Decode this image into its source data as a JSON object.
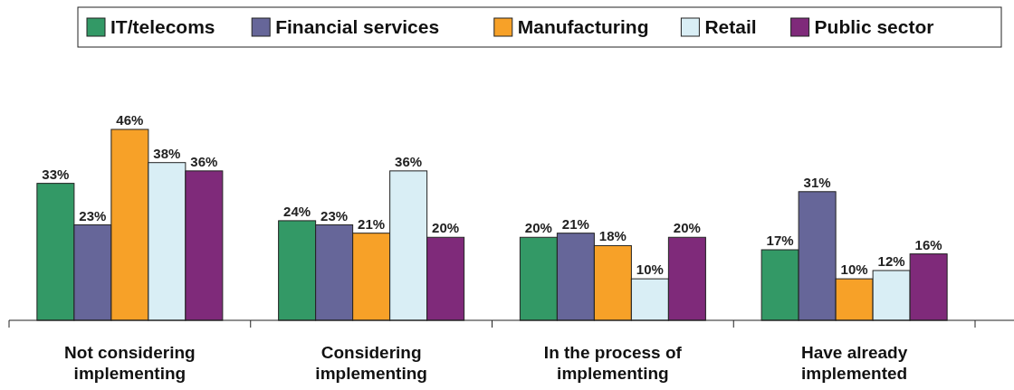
{
  "chart_data": {
    "type": "bar",
    "categories": [
      "Not considering implementing",
      "Considering implementing",
      "In the process of implementing",
      "Have already implemented"
    ],
    "series": [
      {
        "name": "IT/telecoms",
        "color": "#339966",
        "values": [
          33,
          24,
          20,
          17
        ],
        "value_labels": [
          "33%",
          "24%",
          "20%",
          "17%"
        ]
      },
      {
        "name": "Financial services",
        "color": "#666699",
        "values": [
          23,
          23,
          21,
          31
        ],
        "value_labels": [
          "23%",
          "23%",
          "21%",
          "31%"
        ]
      },
      {
        "name": "Manufacturing",
        "color": "#f7a128",
        "values": [
          46,
          21,
          18,
          10
        ],
        "value_labels": [
          "46%",
          "21%",
          "18%",
          "10%"
        ]
      },
      {
        "name": "Retail",
        "color": "#d9eef5",
        "values": [
          38,
          36,
          10,
          12
        ],
        "value_labels": [
          "38%",
          "36%",
          "10%",
          "12%"
        ]
      },
      {
        "name": "Public sector",
        "color": "#7f2a7a",
        "values": [
          36,
          20,
          20,
          16
        ],
        "value_labels": [
          "36%",
          "20%",
          "20%",
          "16%"
        ]
      }
    ],
    "legend": "top",
    "tick_labels": "x"
  }
}
